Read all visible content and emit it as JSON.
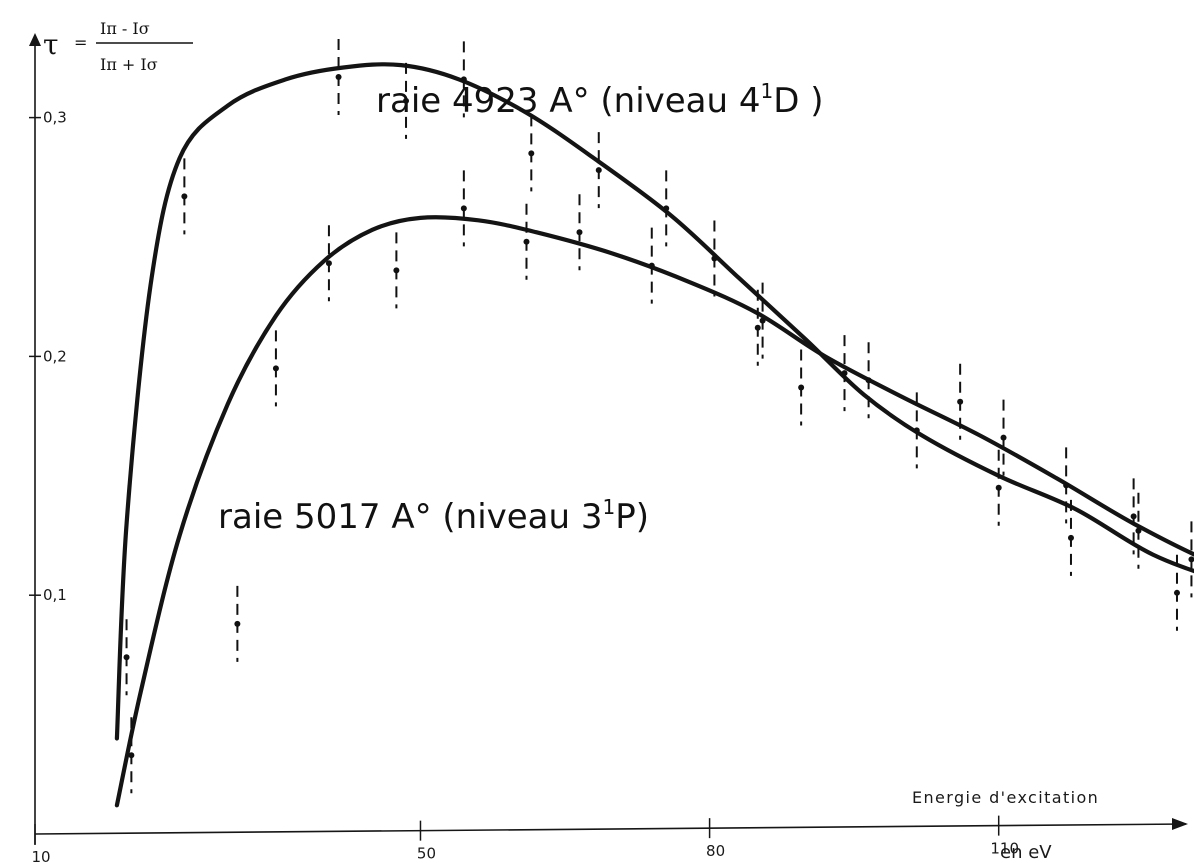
{
  "chart_data": {
    "type": "line",
    "title": "",
    "x_axis": {
      "label": "Energie d'excitation",
      "unit": "en eV",
      "range": [
        10,
        130
      ],
      "ticks": [
        10,
        50,
        80,
        110
      ],
      "tick_labels": [
        "10",
        "50",
        "80",
        "110"
      ]
    },
    "y_axis": {
      "label_symbol": "τ",
      "equals": "=",
      "formula_numerator": "Iπ - Iσ",
      "formula_denominator": "Iπ + Iσ",
      "range": [
        0,
        0.33
      ],
      "ticks": [
        0.1,
        0.2,
        0.3
      ],
      "tick_labels": [
        "0,1",
        "0,2",
        "0,3"
      ]
    },
    "grid": false,
    "series": [
      {
        "name": "raie 4923 A° (niveau 4¹D)",
        "label_prefix": "raie 4923 A° (niveau 4",
        "label_sup": "1",
        "label_suffix": "D )",
        "points": [
          {
            "x": 19.5,
            "y": 0.074
          },
          {
            "x": 25.5,
            "y": 0.267
          },
          {
            "x": 41.5,
            "y": 0.317
          },
          {
            "x": 48.5,
            "y": 0.307
          },
          {
            "x": 54.5,
            "y": 0.316
          },
          {
            "x": 61.5,
            "y": 0.285
          },
          {
            "x": 68.5,
            "y": 0.278
          },
          {
            "x": 75.5,
            "y": 0.262
          },
          {
            "x": 85.5,
            "y": 0.215
          },
          {
            "x": 94,
            "y": 0.193
          },
          {
            "x": 101.5,
            "y": 0.169
          },
          {
            "x": 110,
            "y": 0.145
          },
          {
            "x": 117.5,
            "y": 0.124
          },
          {
            "x": 124.5,
            "y": 0.127
          },
          {
            "x": 128.5,
            "y": 0.101
          },
          {
            "x": 135,
            "y": 0.097
          }
        ],
        "curve": [
          {
            "x": 18.5,
            "y": 0.04
          },
          {
            "x": 19.5,
            "y": 0.13
          },
          {
            "x": 22,
            "y": 0.23
          },
          {
            "x": 25,
            "y": 0.283
          },
          {
            "x": 30,
            "y": 0.305
          },
          {
            "x": 36,
            "y": 0.316
          },
          {
            "x": 42,
            "y": 0.321
          },
          {
            "x": 48,
            "y": 0.322
          },
          {
            "x": 54,
            "y": 0.316
          },
          {
            "x": 61,
            "y": 0.302
          },
          {
            "x": 68,
            "y": 0.283
          },
          {
            "x": 76,
            "y": 0.259
          },
          {
            "x": 83,
            "y": 0.233
          },
          {
            "x": 90,
            "y": 0.207
          },
          {
            "x": 96,
            "y": 0.184
          },
          {
            "x": 102,
            "y": 0.167
          },
          {
            "x": 110,
            "y": 0.15
          },
          {
            "x": 118,
            "y": 0.136
          },
          {
            "x": 126,
            "y": 0.117
          },
          {
            "x": 134,
            "y": 0.105
          },
          {
            "x": 140,
            "y": 0.097
          }
        ]
      },
      {
        "name": "raie 5017 A° (niveau 3¹P)",
        "label_prefix": "raie 5017 A° (niveau 3",
        "label_sup": "1",
        "label_suffix": "P)",
        "points": [
          {
            "x": 20,
            "y": 0.033
          },
          {
            "x": 31,
            "y": 0.088
          },
          {
            "x": 35,
            "y": 0.195
          },
          {
            "x": 40.5,
            "y": 0.239
          },
          {
            "x": 47.5,
            "y": 0.236
          },
          {
            "x": 54.5,
            "y": 0.262
          },
          {
            "x": 61,
            "y": 0.248
          },
          {
            "x": 66.5,
            "y": 0.252
          },
          {
            "x": 74,
            "y": 0.238
          },
          {
            "x": 80.5,
            "y": 0.241
          },
          {
            "x": 85,
            "y": 0.212
          },
          {
            "x": 89.5,
            "y": 0.187
          },
          {
            "x": 96.5,
            "y": 0.19
          },
          {
            "x": 106,
            "y": 0.181
          },
          {
            "x": 110.5,
            "y": 0.166
          },
          {
            "x": 117,
            "y": 0.146
          },
          {
            "x": 124,
            "y": 0.133
          },
          {
            "x": 130,
            "y": 0.115
          },
          {
            "x": 135,
            "y": 0.102
          }
        ],
        "curve": [
          {
            "x": 18.5,
            "y": 0.012
          },
          {
            "x": 21,
            "y": 0.06
          },
          {
            "x": 25,
            "y": 0.125
          },
          {
            "x": 30,
            "y": 0.18
          },
          {
            "x": 35,
            "y": 0.217
          },
          {
            "x": 40,
            "y": 0.24
          },
          {
            "x": 45,
            "y": 0.253
          },
          {
            "x": 50,
            "y": 0.258
          },
          {
            "x": 56,
            "y": 0.257
          },
          {
            "x": 62,
            "y": 0.252
          },
          {
            "x": 70,
            "y": 0.243
          },
          {
            "x": 78,
            "y": 0.231
          },
          {
            "x": 85,
            "y": 0.218
          },
          {
            "x": 92,
            "y": 0.2
          },
          {
            "x": 100,
            "y": 0.183
          },
          {
            "x": 108,
            "y": 0.167
          },
          {
            "x": 116,
            "y": 0.149
          },
          {
            "x": 124,
            "y": 0.13
          },
          {
            "x": 132,
            "y": 0.114
          },
          {
            "x": 140,
            "y": 0.103
          }
        ]
      }
    ]
  }
}
